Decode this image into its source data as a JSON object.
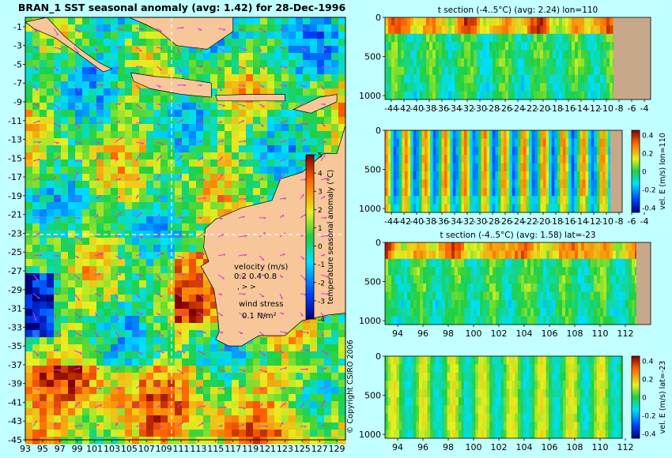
{
  "colors": {
    "background": "#c2ffff",
    "land": "#f7c79a",
    "land_panel": "#c8a88a",
    "vector": "#d838d8",
    "white_dash": "#ffffff"
  },
  "map": {
    "title": "BRAN_1  SST seasonal anomaly  (avg: 1.42) for 28-Dec-1996",
    "lon_ticks": [
      "93",
      "95",
      "97",
      "99",
      "101",
      "103",
      "105",
      "107",
      "109",
      "111",
      "113",
      "115",
      "117",
      "119",
      "121",
      "123",
      "125",
      "127",
      "129"
    ],
    "lat_ticks": [
      "-1",
      "-3",
      "-5",
      "-7",
      "-9",
      "-11",
      "-13",
      "-15",
      "-17",
      "-19",
      "-21",
      "-23",
      "-25",
      "-27",
      "-29",
      "-31",
      "-33",
      "-35",
      "-37",
      "-39",
      "-41",
      "-43",
      "-45"
    ],
    "colorbar": {
      "label": "temperature seasonal anomaly (°C)",
      "ticks": [
        "5",
        "4",
        "3",
        "2",
        "1",
        "0",
        "-1",
        "-2",
        "-3",
        "-4"
      ]
    },
    "velocity_legend": {
      "title": "velocity (m/s)",
      "values": "0.2 0.4 0.8",
      "wind_title": "wind stress",
      "wind_value": "0.1 N/m²"
    },
    "copyright": "© Copyright CSIRO 2006"
  },
  "panels": [
    {
      "title": "t section (-4..5°C)  (avg: 2.24) lon=110",
      "x_ticks": [
        "-44",
        "-42",
        "-40",
        "-38",
        "-36",
        "-34",
        "-32",
        "-30",
        "-28",
        "-26",
        "-24",
        "-22",
        "-20",
        "-18",
        "-16",
        "-14",
        "-12",
        "-10",
        "-8",
        "-6",
        "-4"
      ],
      "y_ticks": [
        "0",
        "500",
        "1000"
      ],
      "colorbar_label": "",
      "colorbar_ticks": []
    },
    {
      "title": "",
      "x_ticks": [
        "-44",
        "-42",
        "-40",
        "-38",
        "-36",
        "-34",
        "-32",
        "-30",
        "-28",
        "-26",
        "-24",
        "-22",
        "-20",
        "-18",
        "-16",
        "-14",
        "-12",
        "-10",
        "-8",
        "-6",
        "-4"
      ],
      "y_ticks": [
        "0",
        "500",
        "1000"
      ],
      "colorbar_label": "vel. E (m/s) lon=110",
      "colorbar_ticks": [
        "0.4",
        "0.2",
        "0",
        "-0.2",
        "-0.4"
      ]
    },
    {
      "title": "t section (-4..5°C)  (avg: 1.58) lat=-23",
      "x_ticks": [
        "94",
        "96",
        "98",
        "100",
        "102",
        "104",
        "106",
        "108",
        "110",
        "112"
      ],
      "y_ticks": [
        "0",
        "500",
        "1000"
      ],
      "colorbar_label": "",
      "colorbar_ticks": []
    },
    {
      "title": "",
      "x_ticks": [
        "94",
        "96",
        "98",
        "100",
        "102",
        "104",
        "106",
        "108",
        "110",
        "112"
      ],
      "y_ticks": [
        "0",
        "500",
        "1000"
      ],
      "colorbar_label": "vel. E (m/s) lat=-23",
      "colorbar_ticks": [
        "0.4",
        "0.2",
        "0",
        "-0.2",
        "-0.4"
      ]
    }
  ],
  "chart_data": [
    {
      "type": "heatmap",
      "title": "BRAN_1  SST seasonal anomaly  (avg: 1.42) for 28-Dec-1996",
      "x_range": [
        93,
        130
      ],
      "y_range": [
        -45,
        0
      ],
      "value_range": [
        -4,
        5
      ],
      "units": "°C"
    },
    {
      "type": "heatmap",
      "title": "t section (-4..5°C)  (avg: 2.24) lon=110",
      "x_range": [
        -45,
        -3
      ],
      "y_range": [
        1050,
        0
      ],
      "value_range": [
        -4,
        5
      ]
    },
    {
      "type": "heatmap",
      "x_range": [
        -45,
        -3
      ],
      "y_range": [
        1050,
        0
      ],
      "value_range": [
        -0.4,
        0.4
      ],
      "units": "m/s"
    },
    {
      "type": "heatmap",
      "title": "t section (-4..5°C)  (avg: 1.58) lat=-23",
      "x_range": [
        93,
        114
      ],
      "y_range": [
        1050,
        0
      ],
      "value_range": [
        -4,
        5
      ]
    },
    {
      "type": "heatmap",
      "x_range": [
        93,
        114
      ],
      "y_range": [
        1050,
        0
      ],
      "value_range": [
        -0.4,
        0.4
      ],
      "units": "m/s"
    }
  ]
}
